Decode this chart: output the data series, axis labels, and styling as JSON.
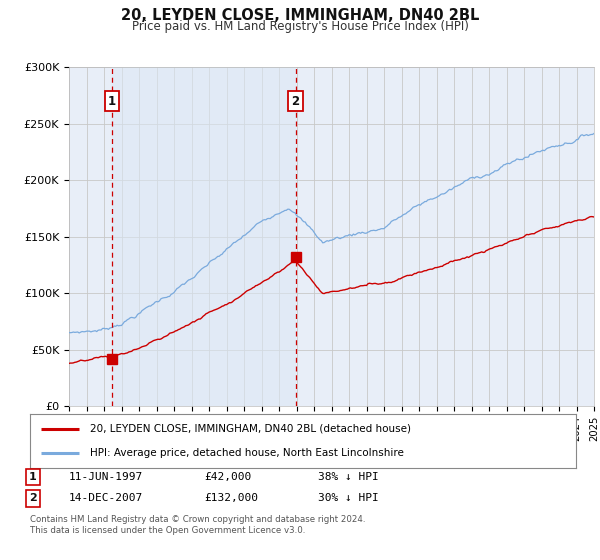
{
  "title": "20, LEYDEN CLOSE, IMMINGHAM, DN40 2BL",
  "subtitle": "Price paid vs. HM Land Registry's House Price Index (HPI)",
  "bg_color": "#e8eef8",
  "plot_bg_color": "#e8eef8",
  "grid_color": "#c8c8c8",
  "red_line_color": "#cc0000",
  "blue_line_color": "#7aaadd",
  "purchase1_date": 1997.45,
  "purchase1_value": 42000,
  "purchase1_label": "1",
  "purchase1_date_str": "11-JUN-1997",
  "purchase1_price_str": "£42,000",
  "purchase1_hpi_str": "38% ↓ HPI",
  "purchase2_date": 2007.95,
  "purchase2_value": 132000,
  "purchase2_label": "2",
  "purchase2_date_str": "14-DEC-2007",
  "purchase2_price_str": "£132,000",
  "purchase2_hpi_str": "30% ↓ HPI",
  "ylim_min": 0,
  "ylim_max": 300000,
  "xlim_min": 1995.0,
  "xlim_max": 2025.0,
  "ylabel_ticks": [
    0,
    50000,
    100000,
    150000,
    200000,
    250000,
    300000
  ],
  "ylabel_labels": [
    "£0",
    "£50K",
    "£100K",
    "£150K",
    "£200K",
    "£250K",
    "£300K"
  ],
  "legend_line1": "20, LEYDEN CLOSE, IMMINGHAM, DN40 2BL (detached house)",
  "legend_line2": "HPI: Average price, detached house, North East Lincolnshire",
  "footnote1": "Contains HM Land Registry data © Crown copyright and database right 2024.",
  "footnote2": "This data is licensed under the Open Government Licence v3.0."
}
